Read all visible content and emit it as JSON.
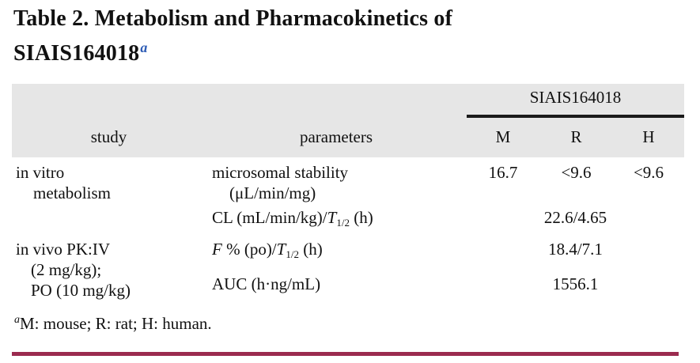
{
  "title": {
    "line1": "Table 2. Metabolism and Pharmacokinetics of",
    "line2": "SIAIS164018",
    "superscript": "a"
  },
  "table": {
    "group_header": "SIAIS164018",
    "col_study": "study",
    "col_parameters": "parameters",
    "col_m": "M",
    "col_r": "R",
    "col_h": "H",
    "rows": {
      "invitro": {
        "study_line1": "in vitro",
        "study_line2": "metabolism",
        "param_line1": "microsomal stability",
        "param_line2": "(μL/min/mg)",
        "m": "16.7",
        "r": "<9.6",
        "h": "<9.6"
      },
      "cl": {
        "param_pre": "CL (mL/min/kg)/",
        "param_T": "T",
        "param_sub": "1/2",
        "param_post": " (h)",
        "value": "22.6/4.65"
      },
      "invivo": {
        "study_line1": "in vivo PK:IV",
        "study_line2": "(2 mg/kg);",
        "study_line3": "PO (10 mg/kg)",
        "f_italic": "F",
        "f_mid": " % (po)/",
        "f_T": "T",
        "f_sub": "1/2",
        "f_post": " (h)",
        "f_value": "18.4/7.1",
        "auc_param": "AUC (h·ng/mL)",
        "auc_value": "1556.1"
      }
    }
  },
  "footnote": {
    "marker": "a",
    "text": "M: mouse; R: rat; H: human."
  },
  "colors": {
    "header_band": "#e6e6e6",
    "group_rule": "#1a1a1a",
    "bottom_rule": "#9b2b4f",
    "title_superscript": "#2d5cb5"
  }
}
